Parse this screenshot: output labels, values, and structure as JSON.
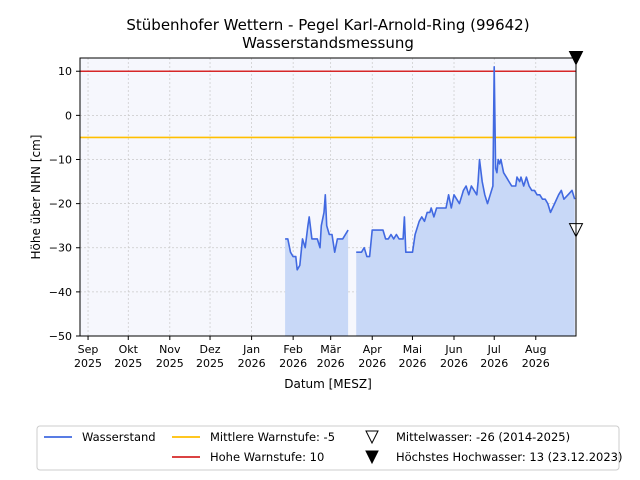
{
  "chart_data": {
    "type": "line",
    "title": [
      "Stübenhofer Wettern - Pegel Karl-Arnold-Ring (99642)",
      "Wasserstandsmessung"
    ],
    "xlabel": "Datum [MESZ]",
    "ylabel": "Höhe über NHN [cm]",
    "ylim": [
      -50,
      13
    ],
    "xlim": [
      "2025-08-26",
      "2026-08-31"
    ],
    "yticks": [
      10,
      0,
      -10,
      -20,
      -30,
      -40,
      -50
    ],
    "xticks": [
      {
        "date": "2025-09-01",
        "label": [
          "Sep",
          "2025"
        ]
      },
      {
        "date": "2025-10-01",
        "label": [
          "Okt",
          "2025"
        ]
      },
      {
        "date": "2025-11-01",
        "label": [
          "Nov",
          "2025"
        ]
      },
      {
        "date": "2025-12-01",
        "label": [
          "Dez",
          "2025"
        ]
      },
      {
        "date": "2026-01-01",
        "label": [
          "Jan",
          "2026"
        ]
      },
      {
        "date": "2026-02-01",
        "label": [
          "Feb",
          "2026"
        ]
      },
      {
        "date": "2026-03-01",
        "label": [
          "Mär",
          "2026"
        ]
      },
      {
        "date": "2026-04-01",
        "label": [
          "Apr",
          "2026"
        ]
      },
      {
        "date": "2026-05-01",
        "label": [
          "Mai",
          "2026"
        ]
      },
      {
        "date": "2026-06-01",
        "label": [
          "Jun",
          "2026"
        ]
      },
      {
        "date": "2026-07-01",
        "label": [
          "Jul",
          "2026"
        ]
      },
      {
        "date": "2026-08-01",
        "label": [
          "Aug",
          "2026"
        ]
      }
    ],
    "grid": true,
    "legend_position": "bottom",
    "colors": {
      "series": "#4169e1",
      "fill": "#c8d8f7",
      "warn_mid": "#ffbf00",
      "warn_high": "#d62728",
      "background": "#f6f7fd"
    },
    "reference_lines": [
      {
        "name": "Mittlere Warnstufe: -5",
        "y": -5,
        "color": "#ffbf00"
      },
      {
        "name": "Hohe Warnstufe: 10",
        "y": 10,
        "color": "#d62728"
      }
    ],
    "markers": [
      {
        "name": "Mittelwasser: -26 (2014-2025)",
        "y": -26,
        "style": "open-triangle-down"
      },
      {
        "name": "Höchstes Hochwasser: 13 (23.12.2023)",
        "y": 13,
        "style": "filled-triangle-down"
      }
    ],
    "series": [
      {
        "name": "Wasserstand",
        "segments": [
          [
            [
              "2026-01-26",
              -28
            ],
            [
              "2026-01-28",
              -28
            ],
            [
              "2026-01-30",
              -31
            ],
            [
              "2026-02-01",
              -32
            ],
            [
              "2026-02-03",
              -32
            ],
            [
              "2026-02-04",
              -35
            ],
            [
              "2026-02-06",
              -34
            ],
            [
              "2026-02-08",
              -28
            ],
            [
              "2026-02-10",
              -30
            ],
            [
              "2026-02-12",
              -25
            ],
            [
              "2026-02-13",
              -23
            ],
            [
              "2026-02-15",
              -28
            ],
            [
              "2026-02-19",
              -28
            ],
            [
              "2026-02-21",
              -30
            ],
            [
              "2026-02-22",
              -25
            ],
            [
              "2026-02-24",
              -22
            ],
            [
              "2026-02-25",
              -18
            ],
            [
              "2026-02-26",
              -25
            ],
            [
              "2026-02-28",
              -27
            ],
            [
              "2026-03-02",
              -27
            ],
            [
              "2026-03-04",
              -31
            ],
            [
              "2026-03-06",
              -28
            ],
            [
              "2026-03-10",
              -28
            ],
            [
              "2026-03-14",
              -26
            ]
          ],
          [
            [
              "2026-03-20",
              -31
            ],
            [
              "2026-03-24",
              -31
            ],
            [
              "2026-03-26",
              -30
            ],
            [
              "2026-03-28",
              -32
            ],
            [
              "2026-03-30",
              -32
            ],
            [
              "2026-04-01",
              -26
            ],
            [
              "2026-04-04",
              -26
            ],
            [
              "2026-04-09",
              -26
            ],
            [
              "2026-04-11",
              -28
            ],
            [
              "2026-04-13",
              -28
            ],
            [
              "2026-04-15",
              -27
            ],
            [
              "2026-04-17",
              -28
            ],
            [
              "2026-04-19",
              -27
            ],
            [
              "2026-04-21",
              -28
            ],
            [
              "2026-04-24",
              -28
            ],
            [
              "2026-04-25",
              -23
            ],
            [
              "2026-04-26",
              -31
            ],
            [
              "2026-05-01",
              -31
            ],
            [
              "2026-05-03",
              -27
            ],
            [
              "2026-05-06",
              -24
            ],
            [
              "2026-05-08",
              -23
            ],
            [
              "2026-05-10",
              -24
            ],
            [
              "2026-05-12",
              -22
            ],
            [
              "2026-05-14",
              -22
            ],
            [
              "2026-05-15",
              -21
            ],
            [
              "2026-05-17",
              -23
            ],
            [
              "2026-05-19",
              -21
            ],
            [
              "2026-05-23",
              -21
            ],
            [
              "2026-05-26",
              -21
            ],
            [
              "2026-05-28",
              -18
            ],
            [
              "2026-05-30",
              -21
            ],
            [
              "2026-06-01",
              -18
            ],
            [
              "2026-06-03",
              -19
            ],
            [
              "2026-06-05",
              -20
            ],
            [
              "2026-06-07",
              -18
            ],
            [
              "2026-06-08",
              -17
            ],
            [
              "2026-06-10",
              -16
            ],
            [
              "2026-06-12",
              -18
            ],
            [
              "2026-06-14",
              -16
            ],
            [
              "2026-06-16",
              -17
            ],
            [
              "2026-06-18",
              -18
            ],
            [
              "2026-06-19",
              -15
            ],
            [
              "2026-06-20",
              -10
            ],
            [
              "2026-06-22",
              -15
            ],
            [
              "2026-06-24",
              -18
            ],
            [
              "2026-06-26",
              -20
            ],
            [
              "2026-06-28",
              -18
            ],
            [
              "2026-06-30",
              -16
            ],
            [
              "2026-07-01",
              11
            ],
            [
              "2026-07-02",
              -12
            ],
            [
              "2026-07-03",
              -13
            ],
            [
              "2026-07-04",
              -10
            ],
            [
              "2026-07-05",
              -11
            ],
            [
              "2026-07-06",
              -10
            ],
            [
              "2026-07-08",
              -13
            ],
            [
              "2026-07-10",
              -14
            ],
            [
              "2026-07-12",
              -15
            ],
            [
              "2026-07-14",
              -16
            ],
            [
              "2026-07-17",
              -16
            ],
            [
              "2026-07-18",
              -14
            ],
            [
              "2026-07-20",
              -15
            ],
            [
              "2026-07-21",
              -14
            ],
            [
              "2026-07-23",
              -16
            ],
            [
              "2026-07-25",
              -14
            ],
            [
              "2026-07-27",
              -16
            ],
            [
              "2026-07-29",
              -17
            ],
            [
              "2026-07-31",
              -17
            ],
            [
              "2026-08-02",
              -18
            ],
            [
              "2026-08-04",
              -18
            ],
            [
              "2026-08-06",
              -19
            ],
            [
              "2026-08-08",
              -19
            ],
            [
              "2026-08-10",
              -20
            ],
            [
              "2026-08-12",
              -22
            ],
            [
              "2026-08-15",
              -20
            ],
            [
              "2026-08-18",
              -18
            ],
            [
              "2026-08-20",
              -17
            ],
            [
              "2026-08-22",
              -19
            ],
            [
              "2026-08-25",
              -18
            ],
            [
              "2026-08-28",
              -17
            ],
            [
              "2026-08-30",
              -19
            ]
          ]
        ]
      }
    ]
  }
}
